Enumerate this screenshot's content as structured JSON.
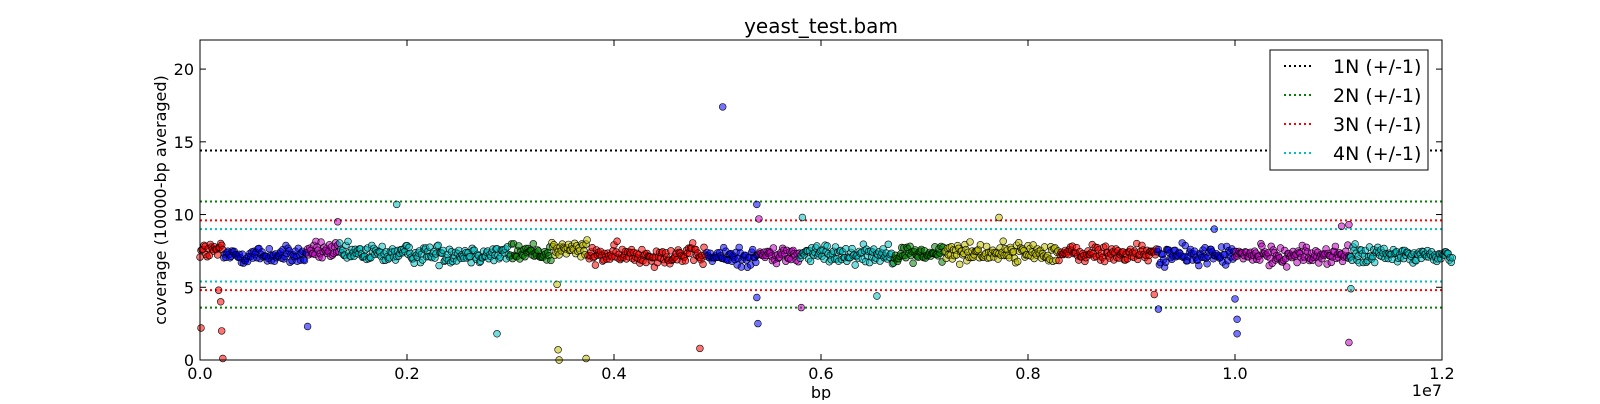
{
  "chart_data": {
    "type": "scatter",
    "title": "yeast_test.bam",
    "xlabel": "bp",
    "ylabel": "coverage (10000-bp averaged)",
    "x_offset_label": "1e7",
    "xlim": [
      0,
      1.2
    ],
    "ylim": [
      0,
      22
    ],
    "x_ticks": [
      {
        "value": 0.0,
        "label": "0.0"
      },
      {
        "value": 0.2,
        "label": "0.2"
      },
      {
        "value": 0.4,
        "label": "0.4"
      },
      {
        "value": 0.6,
        "label": "0.6"
      },
      {
        "value": 0.8,
        "label": "0.8"
      },
      {
        "value": 1.0,
        "label": "1.0"
      },
      {
        "value": 1.2,
        "label": "1.2"
      }
    ],
    "y_ticks": [
      {
        "value": 0,
        "label": "0"
      },
      {
        "value": 5,
        "label": "5"
      },
      {
        "value": 10,
        "label": "10"
      },
      {
        "value": 15,
        "label": "15"
      },
      {
        "value": 20,
        "label": "20"
      }
    ],
    "reference_lines": [
      {
        "name": "1N (+/-1)",
        "color": "#000000",
        "y": [
          14.4
        ]
      },
      {
        "name": "2N (+/-1)",
        "color": "#008000",
        "y": [
          3.6,
          10.9
        ]
      },
      {
        "name": "3N (+/-1)",
        "color": "#ff0000",
        "y": [
          4.8,
          9.6
        ]
      },
      {
        "name": "4N (+/-1)",
        "color": "#00bfbf",
        "y": [
          5.4,
          9.0
        ]
      }
    ],
    "legend_position": "top-right",
    "segments": [
      {
        "start": 0.0,
        "end": 0.023,
        "color": "#ff0000",
        "mean": 7.5
      },
      {
        "start": 0.023,
        "end": 0.104,
        "color": "#0000ff",
        "mean": 7.2
      },
      {
        "start": 0.104,
        "end": 0.135,
        "color": "#bf00bf",
        "mean": 7.5
      },
      {
        "start": 0.135,
        "end": 0.3,
        "color": "#00bfbf",
        "mean": 7.3
      },
      {
        "start": 0.3,
        "end": 0.34,
        "color": "#008000",
        "mean": 7.4
      },
      {
        "start": 0.34,
        "end": 0.375,
        "color": "#bfbf00",
        "mean": 7.6
      },
      {
        "start": 0.375,
        "end": 0.49,
        "color": "#ff0000",
        "mean": 7.2
      },
      {
        "start": 0.49,
        "end": 0.54,
        "color": "#0000ff",
        "mean": 7.1
      },
      {
        "start": 0.54,
        "end": 0.58,
        "color": "#bf00bf",
        "mean": 7.2
      },
      {
        "start": 0.58,
        "end": 0.67,
        "color": "#00bfbf",
        "mean": 7.3
      },
      {
        "start": 0.67,
        "end": 0.72,
        "color": "#008000",
        "mean": 7.3
      },
      {
        "start": 0.72,
        "end": 0.83,
        "color": "#bfbf00",
        "mean": 7.4
      },
      {
        "start": 0.83,
        "end": 0.925,
        "color": "#ff0000",
        "mean": 7.3
      },
      {
        "start": 0.925,
        "end": 1.0,
        "color": "#0000ff",
        "mean": 7.2
      },
      {
        "start": 1.0,
        "end": 1.11,
        "color": "#bf00bf",
        "mean": 7.2
      },
      {
        "start": 1.11,
        "end": 1.21,
        "color": "#00bfbf",
        "mean": 7.2
      }
    ],
    "outliers": [
      {
        "x": 0.001,
        "y": 2.2,
        "color": "#ff0000"
      },
      {
        "x": 0.018,
        "y": 4.8,
        "color": "#ff0000"
      },
      {
        "x": 0.02,
        "y": 4.0,
        "color": "#ff0000"
      },
      {
        "x": 0.021,
        "y": 2.0,
        "color": "#ff0000"
      },
      {
        "x": 0.022,
        "y": 0.1,
        "color": "#ff0000"
      },
      {
        "x": 0.104,
        "y": 2.3,
        "color": "#0000ff"
      },
      {
        "x": 0.133,
        "y": 9.5,
        "color": "#bf00bf"
      },
      {
        "x": 0.19,
        "y": 10.7,
        "color": "#00bfbf"
      },
      {
        "x": 0.287,
        "y": 1.8,
        "color": "#00bfbf"
      },
      {
        "x": 0.345,
        "y": 5.2,
        "color": "#bfbf00"
      },
      {
        "x": 0.346,
        "y": 0.7,
        "color": "#bfbf00"
      },
      {
        "x": 0.347,
        "y": 0.0,
        "color": "#bfbf00"
      },
      {
        "x": 0.373,
        "y": 0.1,
        "color": "#bfbf00"
      },
      {
        "x": 0.483,
        "y": 0.8,
        "color": "#ff0000"
      },
      {
        "x": 0.505,
        "y": 17.4,
        "color": "#0000ff"
      },
      {
        "x": 0.538,
        "y": 10.7,
        "color": "#0000ff"
      },
      {
        "x": 0.538,
        "y": 4.3,
        "color": "#0000ff"
      },
      {
        "x": 0.539,
        "y": 2.5,
        "color": "#0000ff"
      },
      {
        "x": 0.54,
        "y": 9.7,
        "color": "#bf00bf"
      },
      {
        "x": 0.582,
        "y": 9.8,
        "color": "#00bfbf"
      },
      {
        "x": 0.581,
        "y": 3.6,
        "color": "#bf00bf"
      },
      {
        "x": 0.654,
        "y": 4.4,
        "color": "#00bfbf"
      },
      {
        "x": 0.772,
        "y": 9.8,
        "color": "#bfbf00"
      },
      {
        "x": 0.922,
        "y": 4.5,
        "color": "#ff0000"
      },
      {
        "x": 0.926,
        "y": 3.5,
        "color": "#0000ff"
      },
      {
        "x": 0.98,
        "y": 9.0,
        "color": "#0000ff"
      },
      {
        "x": 1.0,
        "y": 4.2,
        "color": "#0000ff"
      },
      {
        "x": 1.002,
        "y": 2.8,
        "color": "#0000ff"
      },
      {
        "x": 1.002,
        "y": 1.8,
        "color": "#0000ff"
      },
      {
        "x": 1.103,
        "y": 9.2,
        "color": "#bf00bf"
      },
      {
        "x": 1.11,
        "y": 9.3,
        "color": "#bf00bf"
      },
      {
        "x": 1.11,
        "y": 1.2,
        "color": "#bf00bf"
      },
      {
        "x": 1.112,
        "y": 4.9,
        "color": "#00bfbf"
      }
    ]
  }
}
